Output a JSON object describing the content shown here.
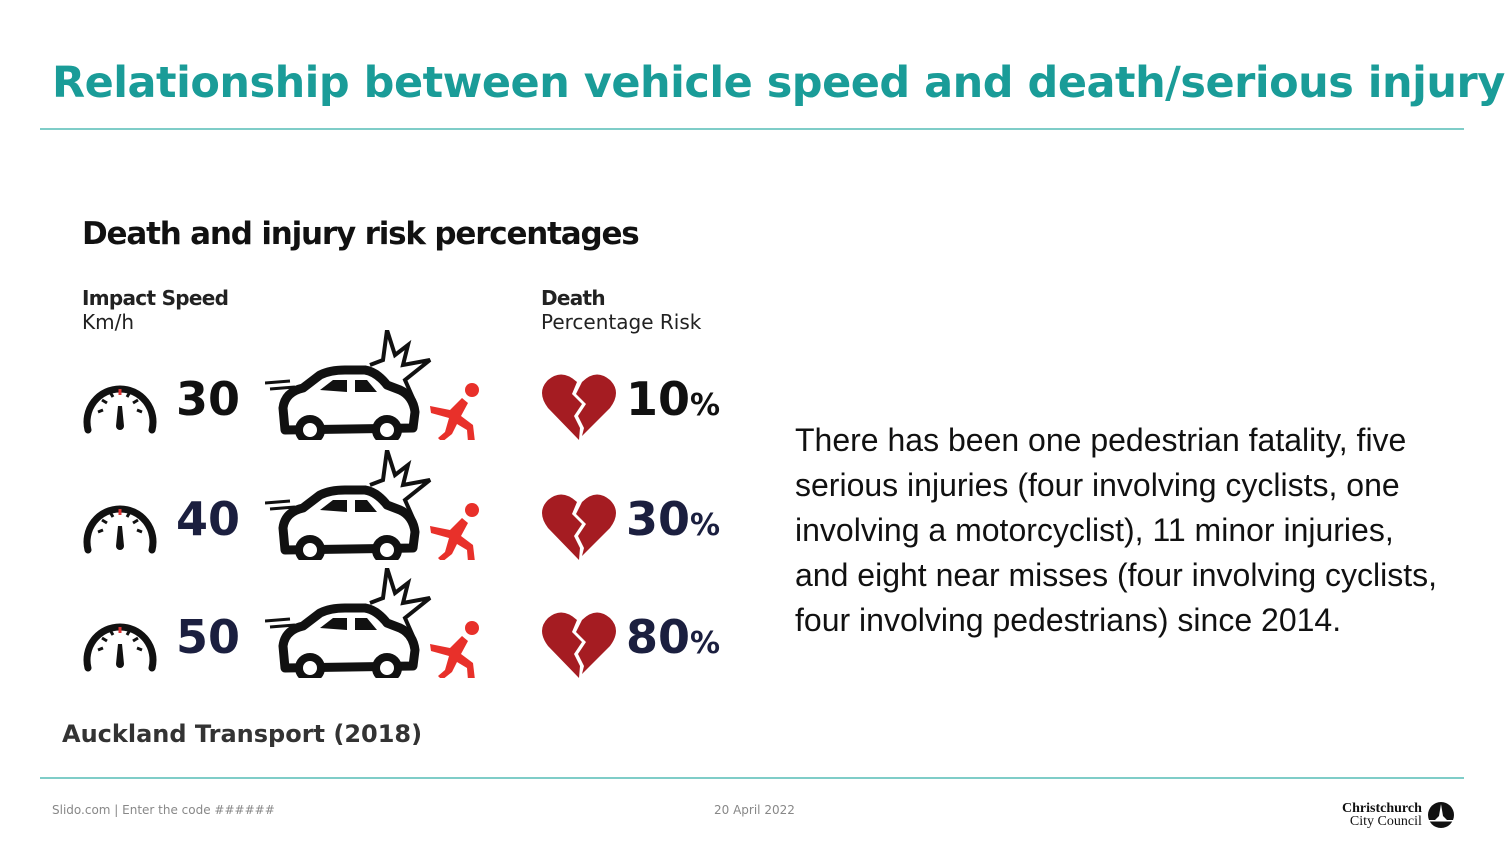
{
  "slide": {
    "title": "Relationship between vehicle speed and death/serious injury",
    "body_text": "There has been one pedestrian fatality, five serious injuries (four involving cyclists, one involving a motorcyclist), 11 minor injuries, and eight near misses (four involving cyclists, four involving pedestrians) since 2014."
  },
  "infographic": {
    "title": "Death and injury risk percentages",
    "speed_header": "Impact Speed",
    "speed_unit": "Km/h",
    "risk_header": "Death",
    "risk_sub": "Percentage Risk",
    "rows": [
      {
        "speed": "30",
        "risk": "10",
        "color": "#111111"
      },
      {
        "speed": "40",
        "risk": "30",
        "color": "#1b1f3f"
      },
      {
        "speed": "50",
        "risk": "80",
        "color": "#1b1f3f"
      }
    ],
    "percent_sign": "%",
    "source": "Auckland Transport (2018)"
  },
  "footer": {
    "left": "Slido.com | Enter the code ######",
    "date": "20 April 2022",
    "logo_line1": "Christchurch",
    "logo_line2": "City Council"
  },
  "colors": {
    "accent": "#1a9c98",
    "rule": "#7fcdc8",
    "heart": "#a51c22",
    "pedestrian": "#e8302a"
  }
}
